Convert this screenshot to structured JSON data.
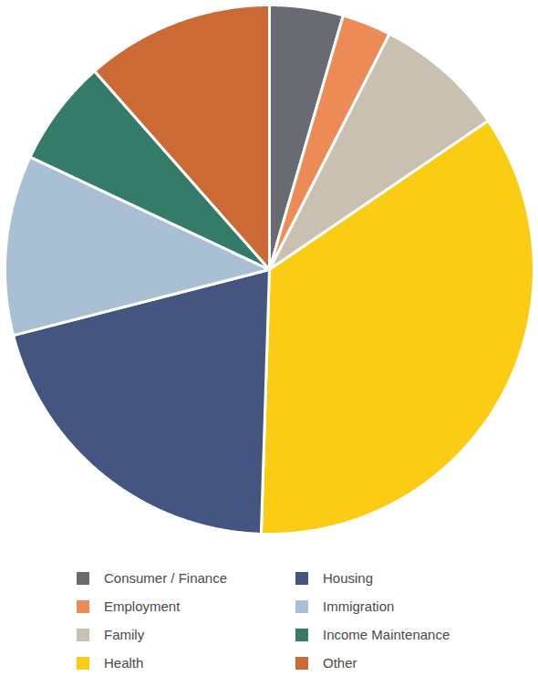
{
  "chart_data": {
    "type": "pie",
    "categories": [
      "Consumer / Finance",
      "Employment",
      "Family",
      "Health",
      "Housing",
      "Immigration",
      "Income Maintenance",
      "Other"
    ],
    "values": [
      4.5,
      3,
      8,
      35,
      20.5,
      11,
      6.5,
      11.5
    ],
    "colors": [
      "#696b72",
      "#ec8b55",
      "#c9c0b2",
      "#fbcc14",
      "#44567f",
      "#a8bfd4",
      "#347b6a",
      "#cc6a36"
    ],
    "legend": "bottom",
    "data_labels": false
  }
}
